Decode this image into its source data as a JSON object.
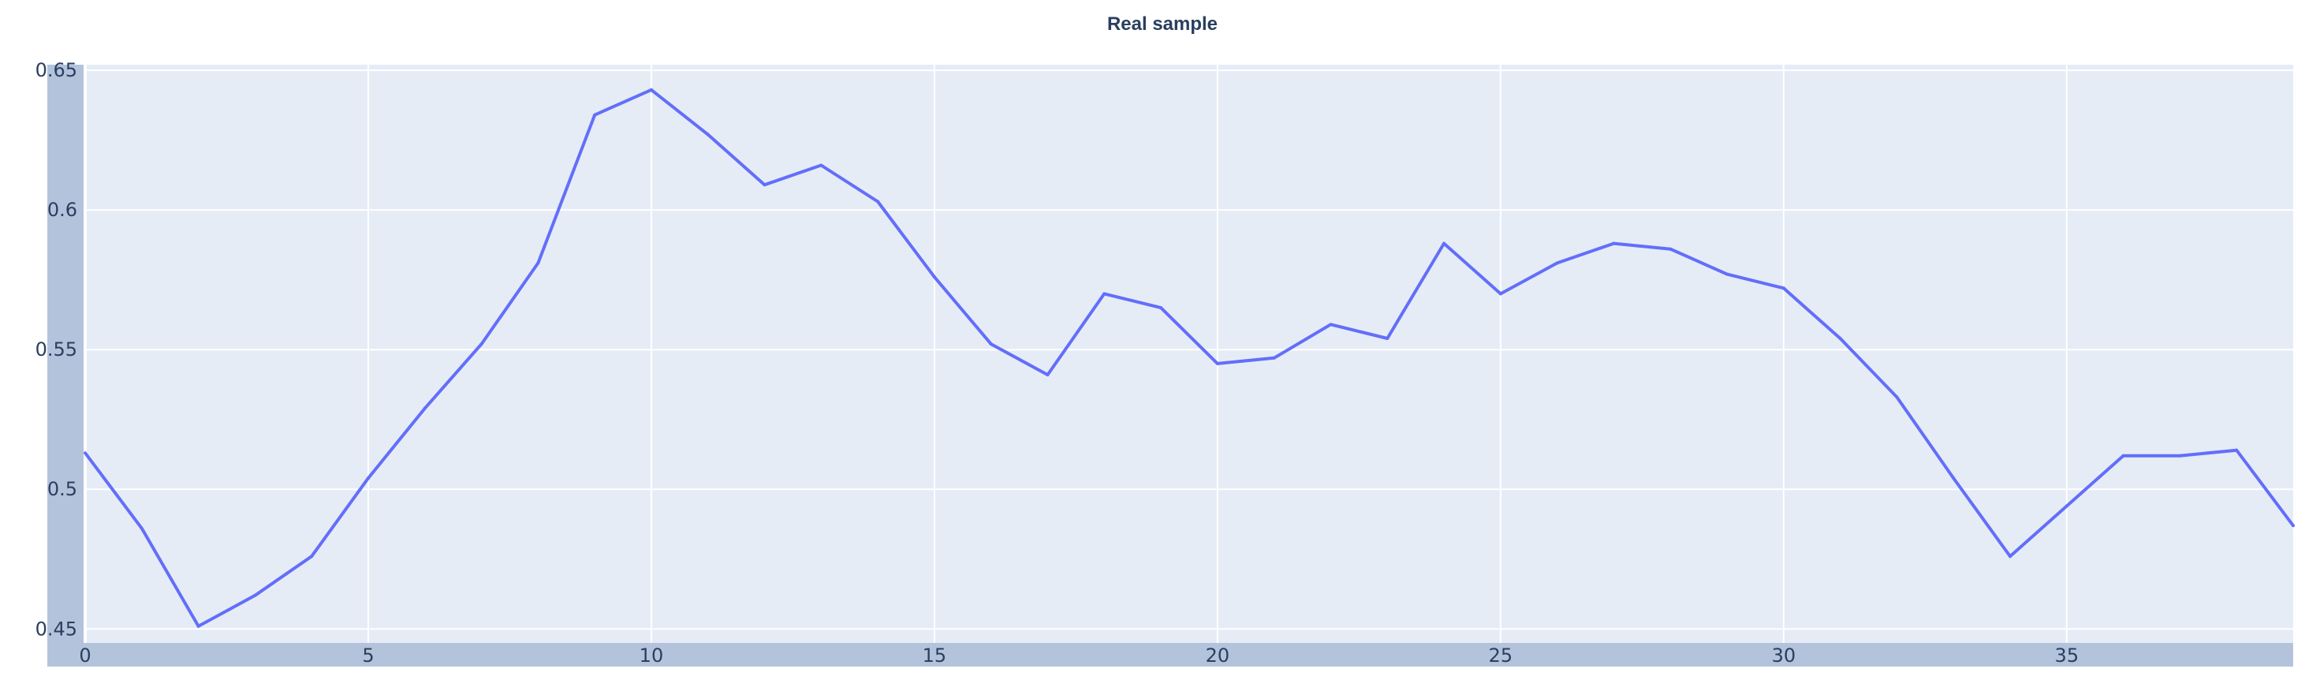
{
  "colors": {
    "plot_background": "#e5ecf6",
    "axis_band": "#b4c3dc",
    "gridline": "#ffffff",
    "line": "#636efa",
    "text": "#2a3f5f"
  },
  "chart_data": {
    "type": "line",
    "title": "Real sample",
    "xlabel": "",
    "ylabel": "",
    "grid": true,
    "legend": "none",
    "xlim": [
      0,
      39
    ],
    "ylim": [
      0.445,
      0.652
    ],
    "x_ticks": [
      0,
      5,
      10,
      15,
      20,
      25,
      30,
      35
    ],
    "x_tick_labels": [
      "0",
      "5",
      "10",
      "15",
      "20",
      "25",
      "30",
      "35"
    ],
    "y_ticks": [
      0.45,
      0.5,
      0.55,
      0.6,
      0.65
    ],
    "y_tick_labels": [
      "0.45",
      "0.5",
      "0.55",
      "0.6",
      "0.65"
    ],
    "series": [
      {
        "color": "#636efa",
        "x": [
          0,
          1,
          2,
          3,
          4,
          5,
          6,
          7,
          8,
          9,
          10,
          11,
          12,
          13,
          14,
          15,
          16,
          17,
          18,
          19,
          20,
          21,
          22,
          23,
          24,
          25,
          26,
          27,
          28,
          29,
          30,
          31,
          32,
          33,
          34,
          35,
          36,
          37,
          38,
          39
        ],
        "y": [
          0.513,
          0.486,
          0.451,
          0.462,
          0.476,
          0.504,
          0.529,
          0.552,
          0.581,
          0.634,
          0.643,
          0.627,
          0.609,
          0.616,
          0.603,
          0.576,
          0.552,
          0.541,
          0.57,
          0.565,
          0.545,
          0.547,
          0.559,
          0.554,
          0.588,
          0.57,
          0.581,
          0.588,
          0.586,
          0.577,
          0.572,
          0.554,
          0.533,
          0.504,
          0.476,
          0.494,
          0.512,
          0.512,
          0.514,
          0.487
        ]
      }
    ]
  }
}
